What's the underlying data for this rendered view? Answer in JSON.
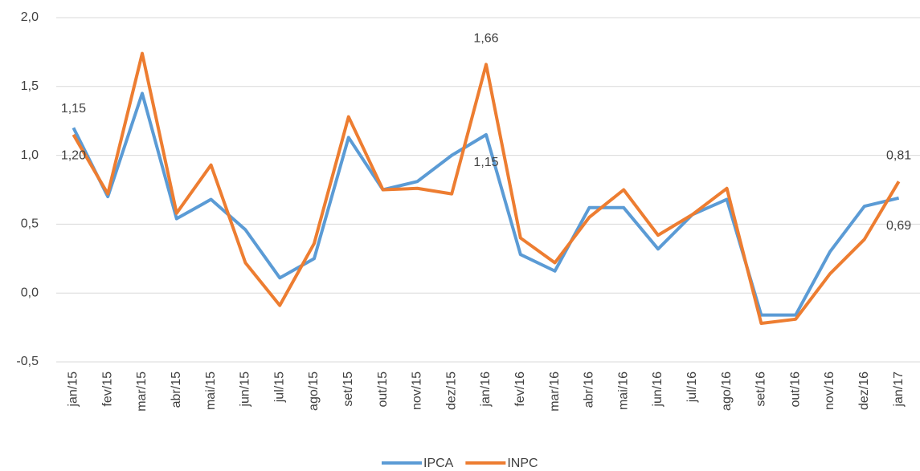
{
  "chart_data": {
    "type": "line",
    "categories": [
      "jan/15",
      "fev/15",
      "mar/15",
      "abr/15",
      "mai/15",
      "jun/15",
      "jul/15",
      "ago/15",
      "set/15",
      "out/15",
      "nov/15",
      "dez/15",
      "jan/16",
      "fev/16",
      "mar/16",
      "abr/16",
      "mai/16",
      "jun/16",
      "jul/16",
      "ago/16",
      "set/16",
      "out/16",
      "nov/16",
      "dez/16",
      "jan/17"
    ],
    "series": [
      {
        "name": "IPCA",
        "color": "#5b9bd5",
        "values": [
          1.2,
          0.7,
          1.45,
          0.54,
          0.68,
          0.46,
          0.11,
          0.25,
          1.13,
          0.75,
          0.81,
          1.0,
          1.15,
          0.28,
          0.16,
          0.62,
          0.62,
          0.32,
          0.57,
          0.68,
          -0.16,
          -0.16,
          0.3,
          0.63,
          0.69
        ],
        "value_labels": [
          "1,20",
          null,
          null,
          null,
          null,
          null,
          null,
          null,
          null,
          null,
          null,
          null,
          "1,15",
          null,
          null,
          null,
          null,
          null,
          null,
          null,
          null,
          null,
          null,
          null,
          "0,69"
        ]
      },
      {
        "name": "INPC",
        "color": "#ed7d31",
        "values": [
          1.15,
          0.72,
          1.74,
          0.58,
          0.93,
          0.22,
          -0.09,
          0.36,
          1.28,
          0.75,
          0.76,
          0.72,
          1.66,
          0.4,
          0.22,
          0.55,
          0.75,
          0.42,
          0.57,
          0.76,
          -0.22,
          -0.19,
          0.14,
          0.39,
          0.81
        ],
        "value_labels": [
          "1,15",
          null,
          null,
          null,
          null,
          null,
          null,
          null,
          null,
          null,
          null,
          null,
          "1,66",
          null,
          null,
          null,
          null,
          null,
          null,
          null,
          null,
          null,
          null,
          null,
          "0,81"
        ]
      }
    ],
    "ylim": [
      -0.5,
      2.0
    ],
    "yticks": [
      {
        "value": -0.5,
        "label": "-0,5"
      },
      {
        "value": 0,
        "label": "0,0"
      },
      {
        "value": 0.5,
        "label": "0,5"
      },
      {
        "value": 1.0,
        "label": "1,0"
      },
      {
        "value": 1.5,
        "label": "1,5"
      },
      {
        "value": 2.0,
        "label": "2,0"
      }
    ],
    "grid": true,
    "legend": "bottom"
  }
}
